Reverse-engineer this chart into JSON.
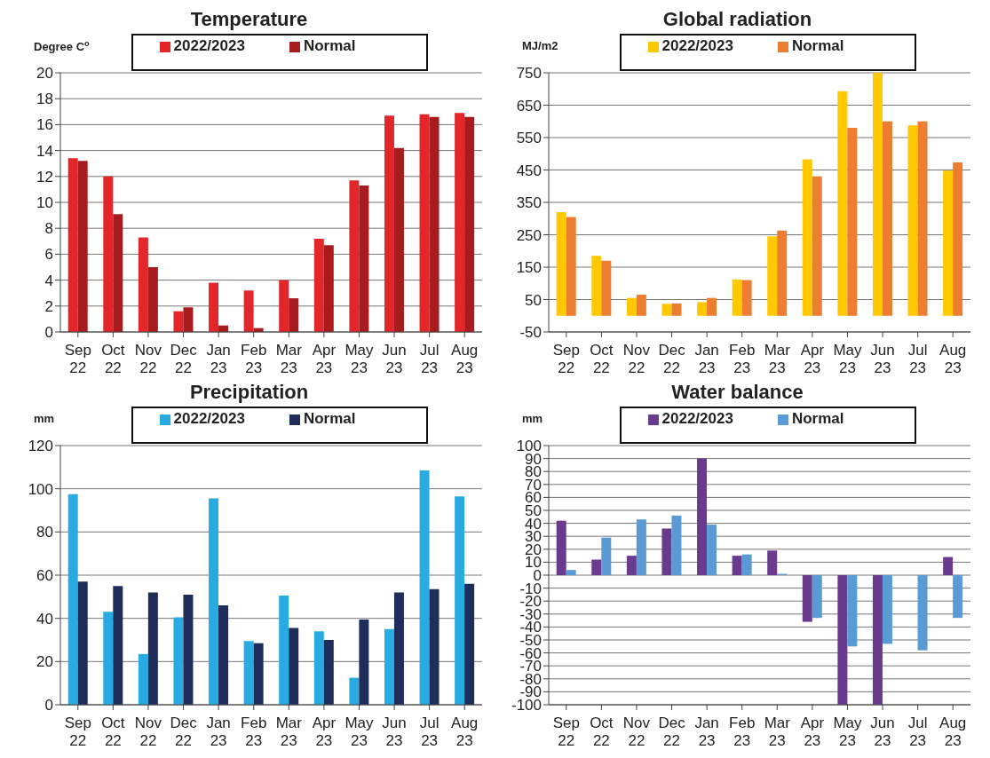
{
  "chart_data": [
    {
      "type": "bar",
      "title": "Temperature",
      "ylabel": "Degree C$^{o}$",
      "categories": [
        "Sep 22",
        "Oct 22",
        "Nov 22",
        "Dec 22",
        "Jan 23",
        "Feb 23",
        "Mar 23",
        "Apr 23",
        "May 23",
        "Jun 23",
        "Jul 23",
        "Aug 23"
      ],
      "series": [
        {
          "name": "2022/2023",
          "color": "#e3262a",
          "values": [
            13.4,
            12.0,
            7.3,
            1.6,
            3.8,
            3.2,
            4.0,
            7.2,
            11.7,
            16.7,
            16.8,
            16.9
          ]
        },
        {
          "name": "Normal",
          "color": "#a81c1f",
          "values": [
            13.2,
            9.1,
            5.0,
            1.9,
            0.5,
            0.3,
            2.6,
            6.7,
            11.3,
            14.2,
            16.6,
            16.6
          ]
        }
      ],
      "ylim": [
        0,
        20
      ],
      "yticks": [
        0,
        2,
        4,
        6,
        8,
        10,
        12,
        14,
        16,
        18,
        20
      ],
      "grid": "y",
      "legend": "top"
    },
    {
      "type": "bar",
      "title": "Global radiation",
      "ylabel": "MJ/m2",
      "categories": [
        "Sep 22",
        "Oct 22",
        "Nov 22",
        "Dec 22",
        "Jan 23",
        "Feb 23",
        "Mar 23",
        "Apr 23",
        "May 23",
        "Jun 23",
        "Jul 23",
        "Aug 23"
      ],
      "series": [
        {
          "name": "2022/2023",
          "color": "#ffc800",
          "values": [
            320,
            185,
            55,
            37,
            42,
            112,
            245,
            483,
            693,
            750,
            588,
            448
          ]
        },
        {
          "name": "Normal",
          "color": "#ed7d31",
          "values": [
            305,
            170,
            65,
            38,
            55,
            110,
            263,
            430,
            580,
            600,
            600,
            473
          ]
        }
      ],
      "ylim": [
        -50,
        750
      ],
      "yticks": [
        -50,
        50,
        150,
        250,
        350,
        450,
        550,
        650,
        750
      ],
      "grid": "y",
      "legend": "top"
    },
    {
      "type": "bar",
      "title": "Precipitation",
      "ylabel": "mm",
      "categories": [
        "Sep 22",
        "Oct 22",
        "Nov 22",
        "Dec 22",
        "Jan 23",
        "Feb 23",
        "Mar 23",
        "Apr 23",
        "May 23",
        "Jun 23",
        "Jul 23",
        "Aug 23"
      ],
      "series": [
        {
          "name": "2022/2023",
          "color": "#29abe2",
          "values": [
            97.5,
            43,
            23.5,
            40.5,
            95.5,
            29.5,
            50.5,
            34,
            12.5,
            35,
            108.5,
            96.5
          ]
        },
        {
          "name": "Normal",
          "color": "#1f2d5a",
          "values": [
            57,
            55,
            52,
            51,
            46,
            28.5,
            35.5,
            30,
            39.5,
            52,
            53.5,
            56
          ]
        }
      ],
      "ylim": [
        0,
        120
      ],
      "yticks": [
        0,
        20,
        40,
        60,
        80,
        100,
        120
      ],
      "grid": "y",
      "legend": "top"
    },
    {
      "type": "bar",
      "title": "Water balance",
      "ylabel": "mm",
      "categories": [
        "Sep 22",
        "Oct 22",
        "Nov 22",
        "Dec 22",
        "Jan 23",
        "Feb 23",
        "Mar 23",
        "Apr 23",
        "May 23",
        "Jun 23",
        "Jul 23",
        "Aug 23"
      ],
      "series": [
        {
          "name": "2022/2023",
          "color": "#6a3a8e",
          "values": [
            42,
            12,
            15,
            36,
            90,
            15,
            19,
            -36,
            -100,
            -100,
            0,
            14
          ]
        },
        {
          "name": "Normal",
          "color": "#5b9bd5",
          "values": [
            4,
            29,
            43,
            46,
            39,
            16,
            1,
            -33,
            -55,
            -53,
            -58,
            -33
          ]
        }
      ],
      "ylim": [
        -100,
        100
      ],
      "yticks": [
        -100,
        -90,
        -80,
        -70,
        -60,
        -50,
        -40,
        -30,
        -20,
        -10,
        0,
        10,
        20,
        30,
        40,
        50,
        60,
        70,
        80,
        90,
        100
      ],
      "grid": "y",
      "legend": "top"
    }
  ]
}
